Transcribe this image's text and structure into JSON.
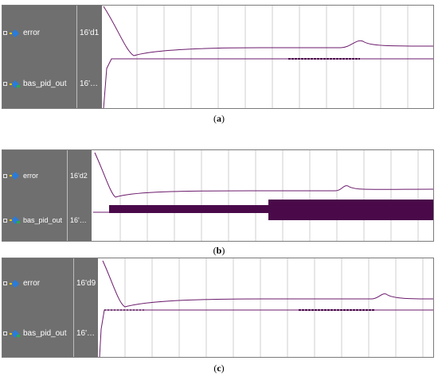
{
  "panels": [
    {
      "id": "a",
      "signals": [
        {
          "name": "error",
          "value": "16'd1",
          "icon": "signal-icon"
        },
        {
          "name": "bas_pid_out",
          "value": "16'…",
          "icon": "signal-icon"
        }
      ],
      "caption": "a",
      "pid_out_pattern": "thin-line"
    },
    {
      "id": "b",
      "signals": [
        {
          "name": "error",
          "value": "16'd2",
          "icon": "signal-icon"
        },
        {
          "name": "bas_pid_out",
          "value": "16'…",
          "icon": "signal-icon"
        }
      ],
      "caption": "b",
      "pid_out_pattern": "dense-toggling"
    },
    {
      "id": "c",
      "signals": [
        {
          "name": "error",
          "value": "16'd9",
          "icon": "signal-icon"
        },
        {
          "name": "bas_pid_out",
          "value": "16'…",
          "icon": "signal-icon"
        }
      ],
      "caption": "c",
      "pid_out_pattern": "thin-line"
    }
  ],
  "colors": {
    "waveform": "#6b1a6b",
    "dense_fill": "#4a0a4a",
    "signal_panel": "#6f6f6f",
    "grid": "#cfcfcf",
    "icon_blue": "#2a7bd8",
    "icon_yellow": "#e9c300",
    "icon_green": "#2ea84a"
  }
}
